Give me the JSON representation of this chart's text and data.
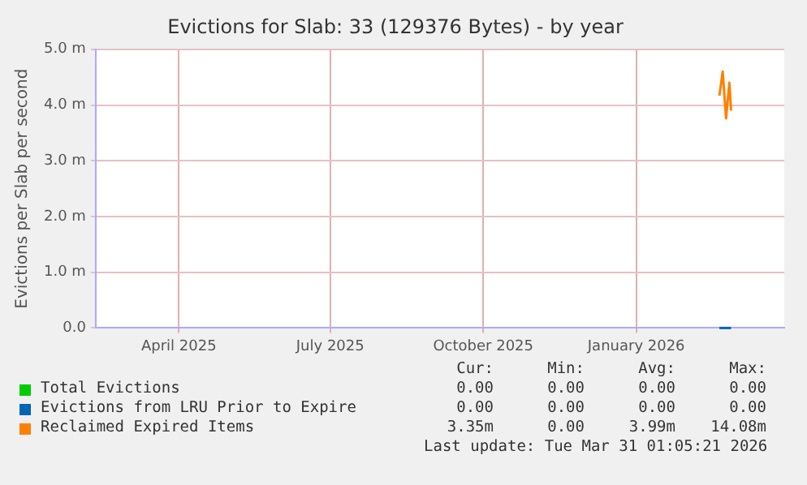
{
  "chart_data": {
    "type": "line",
    "title": "Evictions for Slab: 33 (129376 Bytes) - by year",
    "ylabel": "Evictions per Slab per second",
    "x": [
      "2026-02-20",
      "2026-02-22",
      "2026-02-24",
      "2026-02-26",
      "2026-02-27"
    ],
    "series": [
      {
        "name": "Total Evictions",
        "color": "#00cc00",
        "values": [
          null,
          null,
          null,
          null,
          null
        ]
      },
      {
        "name": "Evictions from LRU Prior to Expire",
        "color": "#0066b3",
        "values": [
          0,
          0,
          0,
          0,
          0
        ]
      },
      {
        "name": "Reclaimed Expired Items",
        "color": "#ff8000",
        "values": [
          4.17,
          4.6,
          3.76,
          4.4,
          3.9
        ]
      }
    ],
    "xlim": [
      "2025-02-10",
      "2026-03-31"
    ],
    "xticks": [
      {
        "value": "2025-04-01",
        "label": "April 2025"
      },
      {
        "value": "2025-07-01",
        "label": "July 2025"
      },
      {
        "value": "2025-10-01",
        "label": "October 2025"
      },
      {
        "value": "2026-01-01",
        "label": "January 2026"
      }
    ],
    "ylim": [
      0,
      5
    ],
    "yticks": [
      {
        "value": 0,
        "label": "0.0"
      },
      {
        "value": 1,
        "label": "1.0 m"
      },
      {
        "value": 2,
        "label": "2.0 m"
      },
      {
        "value": 3,
        "label": "3.0 m"
      },
      {
        "value": 4,
        "label": "4.0 m"
      },
      {
        "value": 5,
        "label": "5.0 m"
      }
    ],
    "grid": true,
    "legend": "bottom",
    "marker": "none",
    "line_style": "solid",
    "annotations": [
      "Cur:",
      "Min:",
      "Avg:",
      "Max:",
      "0.00",
      "0.00",
      "0.00",
      "0.00",
      "0.00",
      "0.00",
      "0.00",
      "0.00",
      "3.35m",
      "0.00",
      "3.99m",
      "14.08m",
      "Last update: Tue Mar 31 01:05:21 2026"
    ]
  }
}
